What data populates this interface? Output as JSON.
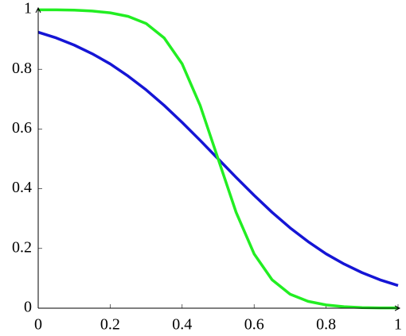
{
  "chart_data": {
    "type": "line",
    "x": [
      0,
      0.05,
      0.1,
      0.15,
      0.2,
      0.25,
      0.3,
      0.35,
      0.4,
      0.45,
      0.5,
      0.55,
      0.6,
      0.65,
      0.7,
      0.75,
      0.8,
      0.85,
      0.9,
      0.95,
      1
    ],
    "series": [
      {
        "color": "#1515d5",
        "values": [
          0.924,
          0.905,
          0.881,
          0.852,
          0.818,
          0.777,
          0.731,
          0.679,
          0.622,
          0.562,
          0.5,
          0.438,
          0.378,
          0.321,
          0.269,
          0.223,
          0.182,
          0.148,
          0.119,
          0.095,
          0.076
        ]
      },
      {
        "color": "#22ee22",
        "values": [
          0.999,
          0.999,
          0.998,
          0.995,
          0.989,
          0.977,
          0.953,
          0.905,
          0.818,
          0.679,
          0.5,
          0.321,
          0.182,
          0.095,
          0.047,
          0.023,
          0.011,
          0.005,
          0.002,
          0.001,
          0.001
        ]
      }
    ],
    "xlim": [
      0,
      1
    ],
    "ylim": [
      0,
      1
    ],
    "xticks": [
      0,
      0.2,
      0.4,
      0.6,
      0.8,
      1
    ],
    "yticks": [
      0,
      0.2,
      0.4,
      0.6,
      0.8,
      1
    ]
  }
}
